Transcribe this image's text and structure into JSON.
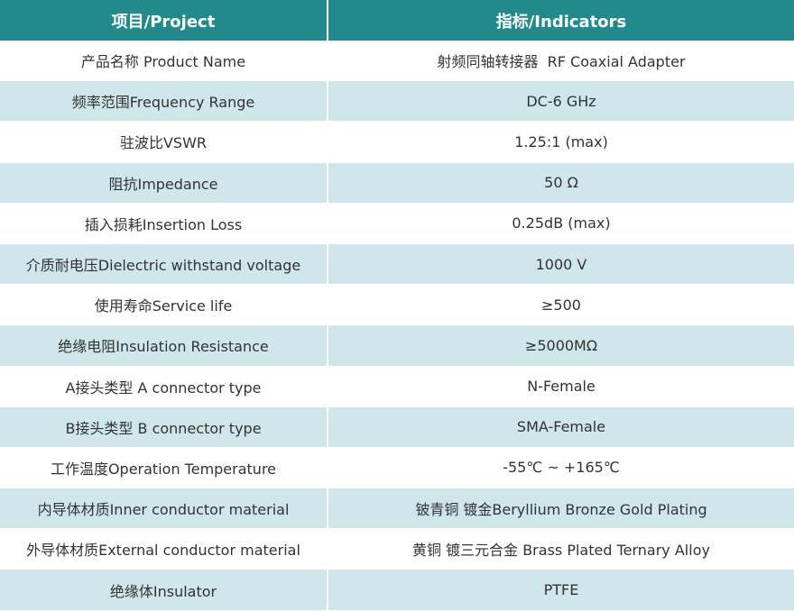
{
  "table": {
    "header": [
      "项目/Project",
      "指标/Indicators"
    ],
    "rows": [
      [
        "产品名称 Product Name",
        "射频同轴转接器  RF Coaxial Adapter"
      ],
      [
        "频率范围Frequency Range",
        "DC-6 GHz"
      ],
      [
        "驻波比VSWR",
        "1.25:1 (max)"
      ],
      [
        "阻抗Impedance",
        "50 Ω"
      ],
      [
        "插入损耗Insertion Loss",
        "0.25dB (max)"
      ],
      [
        "介质耐电压Dielectric withstand voltage",
        "1000 V"
      ],
      [
        "使用寿命Service life",
        "≥500"
      ],
      [
        "绝缘电阻Insulation Resistance",
        "≥5000MΩ"
      ],
      [
        "A接头类型 A connector type",
        "N-Female"
      ],
      [
        "B接头类型 B connector type",
        "SMA-Female"
      ],
      [
        "工作温度Operation Temperature",
        "-55℃ ~ +165℃"
      ],
      [
        "内导体材质Inner conductor material",
        "铍青铜 镀金Beryllium Bronze Gold Plating"
      ],
      [
        "外导体材质External conductor material",
        "黄铜 镀三元合金 Brass Plated Ternary Alloy"
      ],
      [
        "绝缘体Insulator",
        "PTFE"
      ]
    ]
  }
}
